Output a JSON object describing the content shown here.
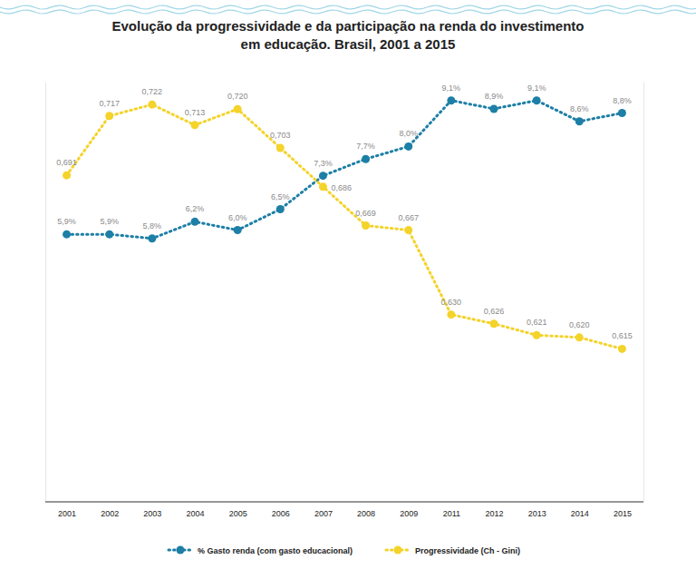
{
  "chart_data": {
    "type": "line",
    "title": "Evolução da progressividade e da participação na renda do investimento em educação. Brasil, 2001 a 2015",
    "categories": [
      "2001",
      "2002",
      "2003",
      "2004",
      "2005",
      "2006",
      "2007",
      "2008",
      "2009",
      "2011",
      "2012",
      "2013",
      "2014",
      "2015"
    ],
    "series": [
      {
        "name": "% Gasto renda (com gasto educacional)",
        "color": "#1d7fa6",
        "marker": "circle",
        "line_style": "dotted",
        "values": [
          5.9,
          5.9,
          5.8,
          6.2,
          6.0,
          6.5,
          7.3,
          7.7,
          8.0,
          9.1,
          8.9,
          9.1,
          8.6,
          8.8
        ],
        "value_labels": [
          "5,9%",
          "5,9%",
          "5,8%",
          "6,2%",
          "6,0%",
          "6,5%",
          "7,3%",
          "7,7%",
          "8,0%",
          "9,1%",
          "8,9%",
          "9,1%",
          "8,6%",
          "8,8%"
        ]
      },
      {
        "name": "Progressividade (Ch - Gini)",
        "color": "#f4d32a",
        "marker": "circle",
        "line_style": "dotted",
        "axis": "y2",
        "values": [
          0.691,
          0.717,
          0.722,
          0.713,
          0.72,
          0.703,
          0.686,
          0.669,
          0.667,
          0.63,
          0.626,
          0.621,
          0.62,
          0.615
        ],
        "value_labels": [
          "0,691",
          "0,717",
          "0,722",
          "0,713",
          "0,720",
          "0,703",
          "0,686",
          "0,669",
          "0,667",
          "0,630",
          "0,626",
          "0,621",
          "0,620",
          "0,615"
        ]
      }
    ],
    "ylim": [
      -0.5,
      9.55
    ],
    "yticks": [],
    "y2lim": [
      0.548,
      0.732
    ],
    "y2ticks": [],
    "tick_labels": "x",
    "data_labels": true,
    "legend": "bottom",
    "grid": false
  }
}
